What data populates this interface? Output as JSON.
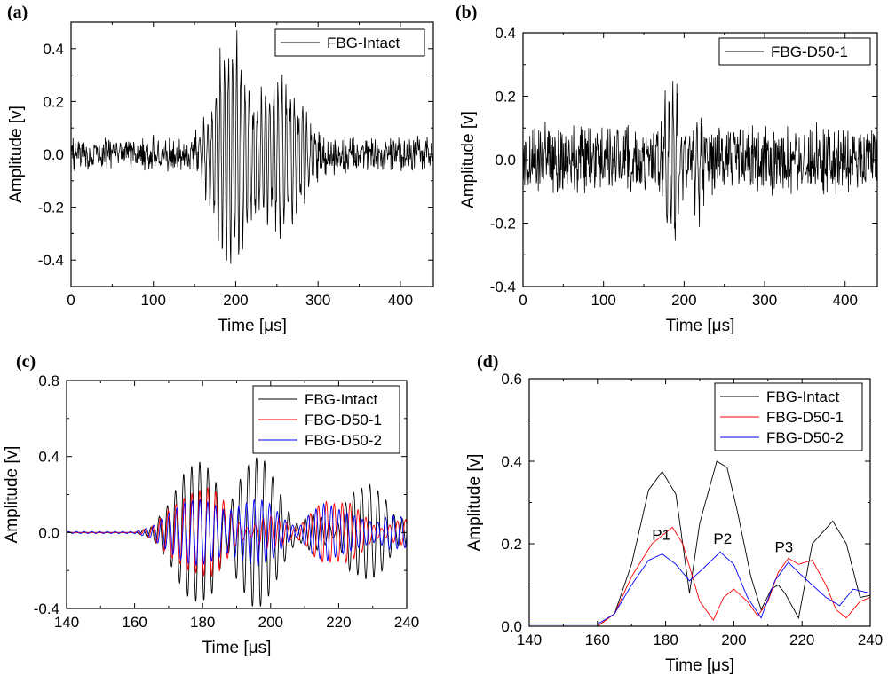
{
  "chart_data": [
    {
      "panel": "(a)",
      "type": "line",
      "xlabel": "Time [μs]",
      "ylabel": "Amplitude [v]",
      "xlim": [
        0,
        440
      ],
      "ylim": [
        -0.5,
        0.5
      ],
      "xticks": [
        0,
        100,
        200,
        300,
        400
      ],
      "yticks": [
        -0.4,
        -0.2,
        0.0,
        0.2,
        0.4
      ],
      "xtick_labels": [
        "0",
        "100",
        "200",
        "300",
        "400"
      ],
      "ytick_labels": [
        "-0.4",
        "-0.2",
        "0.0",
        "0.2",
        "0.4"
      ],
      "legend_position": "top-right",
      "series": [
        {
          "name": "FBG-Intact",
          "color": "#000000",
          "signal": {
            "kind": "noisy",
            "noise": 0.055,
            "packets": [
              {
                "center": 192,
                "width": 18,
                "amp": 0.42,
                "freq": 0.2
              },
              {
                "center": 255,
                "width": 25,
                "amp": 0.27,
                "freq": 0.2
              }
            ]
          }
        }
      ]
    },
    {
      "panel": "(b)",
      "type": "line",
      "xlabel": "Time [μs]",
      "ylabel": "Amplitude [v]",
      "xlim": [
        0,
        440
      ],
      "ylim": [
        -0.4,
        0.4
      ],
      "xticks": [
        0,
        100,
        200,
        300,
        400
      ],
      "yticks": [
        -0.4,
        -0.2,
        0.0,
        0.2,
        0.4
      ],
      "xtick_labels": [
        "0",
        "100",
        "200",
        "300",
        "400"
      ],
      "ytick_labels": [
        "-0.4",
        "-0.2",
        "0.0",
        "0.2",
        "0.4"
      ],
      "legend_position": "top-right",
      "series": [
        {
          "name": "FBG-D50-1",
          "color": "#000000",
          "signal": {
            "kind": "noisy",
            "noise": 0.09,
            "packets": [
              {
                "center": 185,
                "width": 9,
                "amp": 0.26,
                "freq": 0.2
              },
              {
                "center": 218,
                "width": 6,
                "amp": 0.12,
                "freq": 0.2
              }
            ]
          }
        }
      ]
    },
    {
      "panel": "(c)",
      "type": "line",
      "xlabel": "Time [μs]",
      "ylabel": "Amplitude [v]",
      "xlim": [
        140,
        240
      ],
      "ylim": [
        -0.4,
        0.8
      ],
      "xticks": [
        140,
        160,
        180,
        200,
        220,
        240
      ],
      "yticks": [
        -0.4,
        0.0,
        0.4,
        0.8
      ],
      "xtick_labels": [
        "140",
        "160",
        "180",
        "200",
        "220",
        "240"
      ],
      "ytick_labels": [
        "-0.4",
        "0.0",
        "0.4",
        "0.8"
      ],
      "legend_position": "top-right",
      "series": [
        {
          "name": "FBG-Intact",
          "color": "#000000",
          "signal": {
            "kind": "envelope-ref",
            "ref": "FBG-Intact",
            "freq": 0.42,
            "phase": 0.0
          }
        },
        {
          "name": "FBG-D50-1",
          "color": "#ff0000",
          "signal": {
            "kind": "envelope-ref",
            "ref": "FBG-D50-1",
            "freq": 0.43,
            "phase": 1.3
          }
        },
        {
          "name": "FBG-D50-2",
          "color": "#0000ff",
          "signal": {
            "kind": "envelope-ref",
            "ref": "FBG-D50-2",
            "freq": 0.44,
            "phase": 2.4
          }
        }
      ]
    },
    {
      "panel": "(d)",
      "type": "line",
      "xlabel": "Time [μs]",
      "ylabel": "Amplitude [v]",
      "xlim": [
        140,
        240
      ],
      "ylim": [
        0.0,
        0.6
      ],
      "xticks": [
        140,
        160,
        180,
        200,
        220,
        240
      ],
      "yticks": [
        0.0,
        0.2,
        0.4,
        0.6
      ],
      "xtick_labels": [
        "140",
        "160",
        "180",
        "200",
        "220",
        "240"
      ],
      "ytick_labels": [
        "0.0",
        "0.2",
        "0.4",
        "0.6"
      ],
      "legend_position": "top-right",
      "annotations": [
        {
          "text": "P1",
          "x": 176,
          "y": 0.21
        },
        {
          "text": "P2",
          "x": 194,
          "y": 0.2
        },
        {
          "text": "P3",
          "x": 212,
          "y": 0.18
        }
      ],
      "series": [
        {
          "name": "FBG-Intact",
          "color": "#000000",
          "points": [
            [
              140,
              0.0
            ],
            [
              160,
              0.0
            ],
            [
              165,
              0.03
            ],
            [
              170,
              0.15
            ],
            [
              175,
              0.33
            ],
            [
              179,
              0.375
            ],
            [
              183,
              0.32
            ],
            [
              187,
              0.08
            ],
            [
              190,
              0.25
            ],
            [
              195,
              0.4
            ],
            [
              198,
              0.385
            ],
            [
              201,
              0.28
            ],
            [
              205,
              0.12
            ],
            [
              208,
              0.04
            ],
            [
              211,
              0.09
            ],
            [
              213,
              0.1
            ],
            [
              215,
              0.08
            ],
            [
              219,
              0.02
            ],
            [
              223,
              0.2
            ],
            [
              229,
              0.255
            ],
            [
              233,
              0.2
            ],
            [
              237,
              0.07
            ],
            [
              240,
              0.075
            ]
          ]
        },
        {
          "name": "FBG-D50-1",
          "color": "#ff0000",
          "points": [
            [
              140,
              0.0
            ],
            [
              160,
              0.0
            ],
            [
              165,
              0.03
            ],
            [
              170,
              0.12
            ],
            [
              176,
              0.2
            ],
            [
              182,
              0.24
            ],
            [
              185,
              0.2
            ],
            [
              190,
              0.06
            ],
            [
              194,
              0.015
            ],
            [
              197,
              0.07
            ],
            [
              200,
              0.09
            ],
            [
              204,
              0.06
            ],
            [
              207,
              0.025
            ],
            [
              210,
              0.06
            ],
            [
              213,
              0.13
            ],
            [
              216,
              0.165
            ],
            [
              219,
              0.15
            ],
            [
              223,
              0.16
            ],
            [
              227,
              0.1
            ],
            [
              230,
              0.04
            ],
            [
              233,
              0.02
            ],
            [
              237,
              0.06
            ],
            [
              240,
              0.07
            ]
          ]
        },
        {
          "name": "FBG-D50-2",
          "color": "#0000ff",
          "points": [
            [
              140,
              0.005
            ],
            [
              160,
              0.005
            ],
            [
              165,
              0.03
            ],
            [
              170,
              0.1
            ],
            [
              175,
              0.16
            ],
            [
              179,
              0.175
            ],
            [
              183,
              0.15
            ],
            [
              187,
              0.11
            ],
            [
              191,
              0.14
            ],
            [
              196,
              0.18
            ],
            [
              200,
              0.15
            ],
            [
              204,
              0.07
            ],
            [
              208,
              0.02
            ],
            [
              212,
              0.11
            ],
            [
              216,
              0.155
            ],
            [
              219,
              0.13
            ],
            [
              223,
              0.1
            ],
            [
              227,
              0.07
            ],
            [
              231,
              0.05
            ],
            [
              235,
              0.09
            ],
            [
              240,
              0.08
            ]
          ]
        }
      ]
    }
  ]
}
